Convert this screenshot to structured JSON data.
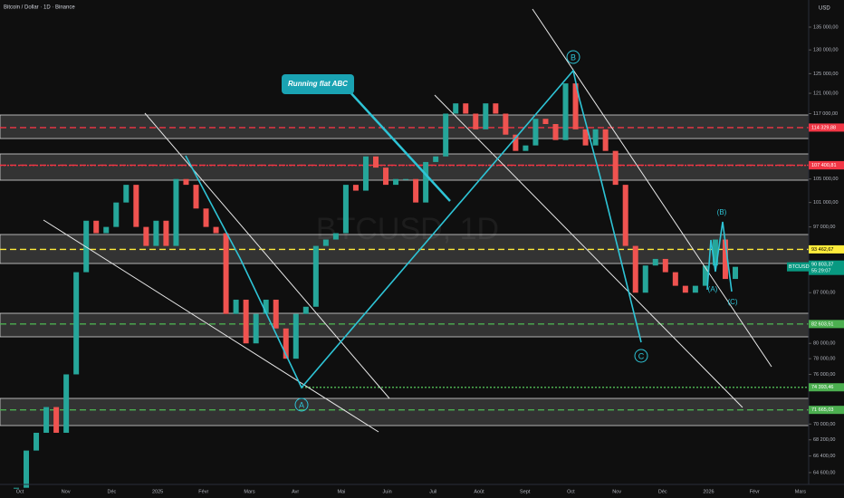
{
  "header": {
    "title": "Bitcoin / Dollar · 1D · Binance",
    "currency": "USD"
  },
  "watermark": "BTCUSD, 1D",
  "chart_data": {
    "type": "candlestick",
    "log_scale": true,
    "ylim": [
      63350,
      141200
    ],
    "yticks": [
      {
        "value": 135000,
        "label": "135 000,00"
      },
      {
        "value": 130000,
        "label": "130 000,00"
      },
      {
        "value": 125000,
        "label": "125 000,00"
      },
      {
        "value": 121000,
        "label": "121 000,00"
      },
      {
        "value": 117000,
        "label": "117 000,00"
      },
      {
        "value": 105000,
        "label": "105 000,00"
      },
      {
        "value": 101000,
        "label": "101 000,00"
      },
      {
        "value": 97000,
        "label": "97 000,00"
      },
      {
        "value": 87000,
        "label": "87 000,00"
      },
      {
        "value": 80000,
        "label": "80 000,00"
      },
      {
        "value": 78000,
        "label": "78 000,00"
      },
      {
        "value": 76000,
        "label": "76 000,00"
      },
      {
        "value": 70000,
        "label": "70 000,00"
      },
      {
        "value": 68200,
        "label": "68 200,00"
      },
      {
        "value": 66400,
        "label": "66 400,00"
      },
      {
        "value": 64600,
        "label": "64 600,00"
      }
    ],
    "x_labels": [
      "Oct",
      "Nov",
      "Déc",
      "2025",
      "Févr",
      "Mars",
      "Avr",
      "Mai",
      "Juin",
      "Juil",
      "Août",
      "Sept",
      "Oct",
      "Nov",
      "Déc",
      "2026",
      "Févr",
      "Mars"
    ],
    "closes": [
      63000,
      67000,
      69000,
      72000,
      69000,
      76000,
      90000,
      98000,
      96000,
      97000,
      101000,
      104000,
      97000,
      94000,
      98000,
      94000,
      105000,
      104000,
      100000,
      97000,
      96000,
      84000,
      86000,
      80000,
      84000,
      86000,
      82000,
      78000,
      84000,
      85000,
      94000,
      95000,
      96000,
      104000,
      103000,
      109000,
      107000,
      104000,
      105000,
      105000,
      101000,
      108000,
      109000,
      117000,
      119000,
      117000,
      114000,
      119000,
      117000,
      113000,
      110000,
      111000,
      116000,
      115000,
      112000,
      123000,
      114000,
      111000,
      114000,
      110000,
      104000,
      94000,
      87000,
      91000,
      92000,
      90000,
      88000,
      87000,
      88000,
      91000,
      95000,
      89000,
      90803.37
    ],
    "up_color": "#26a69a",
    "down_color": "#ef5350",
    "grid": false
  },
  "price_levels": [
    {
      "value": 114329.88,
      "label": "114 329,88",
      "color": "#f23645",
      "style": "dashed"
    },
    {
      "value": 107440.11,
      "label": "107 440,11",
      "color": "#f23645",
      "style": "dashed"
    },
    {
      "value": 107400.81,
      "label": "107 400,81",
      "color": "#f23645",
      "style": "dotted"
    },
    {
      "value": 93462.67,
      "label": "93 462,67",
      "color": "#ffeb3b",
      "style": "dashed"
    },
    {
      "value": 82603.51,
      "label": "82 603,51",
      "color": "#4caf50",
      "style": "dashed"
    },
    {
      "value": 74393.46,
      "label": "74 393,46",
      "color": "#4caf50",
      "style": "dotted"
    },
    {
      "value": 71665.03,
      "label": "71 665,03",
      "color": "#4caf50",
      "style": "dashed"
    }
  ],
  "last_price": {
    "symbol": "BTCUSD",
    "value": 90803.37,
    "label": "90 803,37",
    "countdown": "55:29:07",
    "color": "#089981"
  },
  "annotations": {
    "callout": "Running flat ABC",
    "wave_a": "A",
    "wave_b": "B",
    "wave_c": "C",
    "sub_a": "(A)",
    "sub_b": "(B)",
    "sub_c": "(C)"
  }
}
